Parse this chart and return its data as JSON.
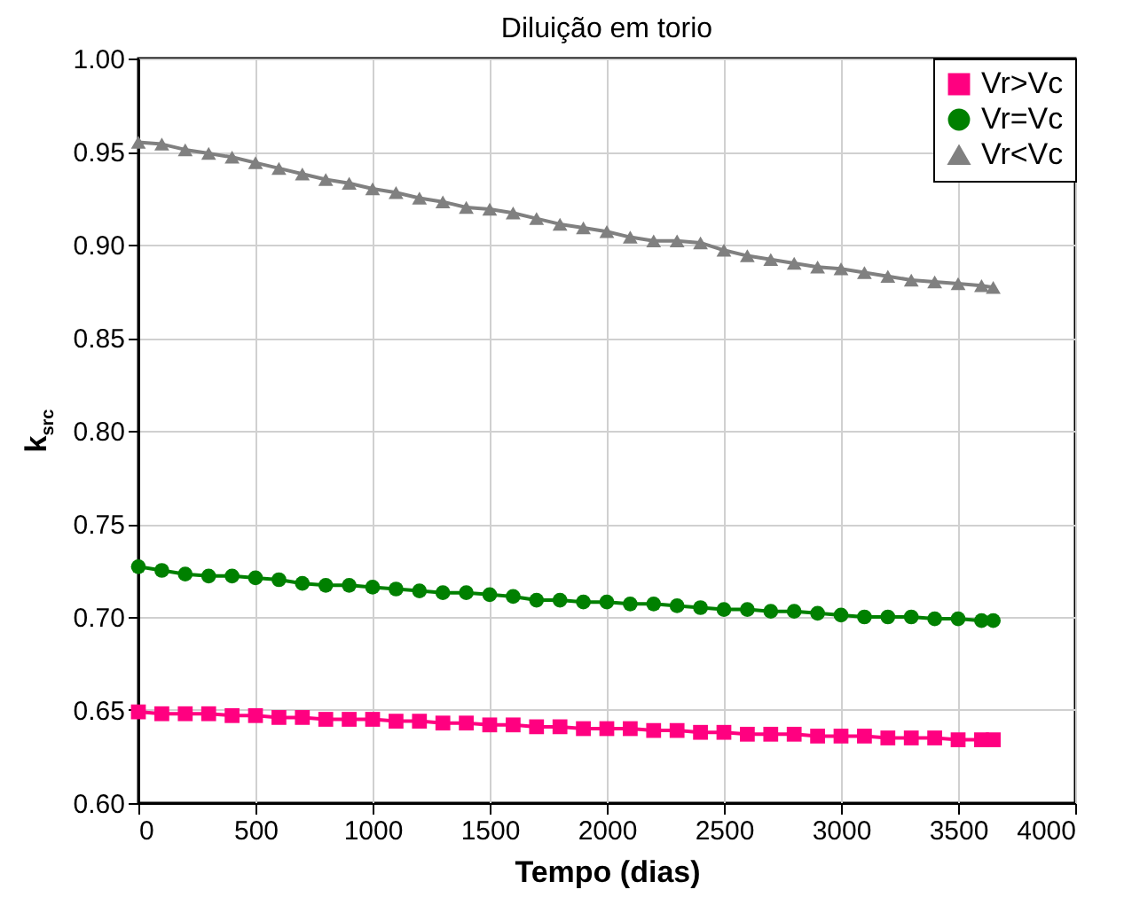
{
  "chart_data": {
    "type": "line",
    "title": "Diluição em torio",
    "xlabel": "Tempo (dias)",
    "ylabel": "k$_{src}$",
    "x": [
      0,
      100,
      200,
      300,
      400,
      500,
      600,
      700,
      800,
      900,
      1000,
      1100,
      1200,
      1300,
      1400,
      1500,
      1600,
      1700,
      1800,
      1900,
      2000,
      2100,
      2200,
      2300,
      2400,
      2500,
      2600,
      2700,
      2800,
      2900,
      3000,
      3100,
      3200,
      3300,
      3400,
      3500,
      3600,
      3650
    ],
    "series": [
      {
        "name": "Vr>Vc",
        "color": "#ff0080",
        "marker": "square",
        "values": [
          0.649,
          0.648,
          0.648,
          0.648,
          0.647,
          0.647,
          0.646,
          0.646,
          0.645,
          0.645,
          0.645,
          0.644,
          0.644,
          0.643,
          0.643,
          0.642,
          0.642,
          0.641,
          0.641,
          0.64,
          0.64,
          0.64,
          0.639,
          0.639,
          0.638,
          0.638,
          0.637,
          0.637,
          0.637,
          0.636,
          0.636,
          0.636,
          0.635,
          0.635,
          0.635,
          0.634,
          0.634,
          0.634
        ]
      },
      {
        "name": "Vr=Vc",
        "color": "#008000",
        "marker": "circle",
        "values": [
          0.727,
          0.725,
          0.723,
          0.722,
          0.722,
          0.721,
          0.72,
          0.718,
          0.717,
          0.717,
          0.716,
          0.715,
          0.714,
          0.713,
          0.713,
          0.712,
          0.711,
          0.709,
          0.709,
          0.708,
          0.708,
          0.707,
          0.707,
          0.706,
          0.705,
          0.704,
          0.704,
          0.703,
          0.703,
          0.702,
          0.701,
          0.7,
          0.7,
          0.7,
          0.699,
          0.699,
          0.698,
          0.698
        ]
      },
      {
        "name": "Vr<Vc",
        "color": "#808080",
        "marker": "triangle",
        "values": [
          0.955,
          0.954,
          0.951,
          0.949,
          0.947,
          0.944,
          0.941,
          0.938,
          0.935,
          0.933,
          0.93,
          0.928,
          0.925,
          0.923,
          0.92,
          0.919,
          0.917,
          0.914,
          0.911,
          0.909,
          0.907,
          0.904,
          0.902,
          0.902,
          0.901,
          0.897,
          0.894,
          0.892,
          0.89,
          0.888,
          0.887,
          0.885,
          0.883,
          0.881,
          0.88,
          0.879,
          0.878,
          0.877
        ]
      }
    ],
    "xlim": [
      0,
      4000
    ],
    "xticks": [
      0,
      500,
      1000,
      1500,
      2000,
      2500,
      3000,
      3500,
      4000
    ],
    "ylim": [
      0.6,
      1.0
    ],
    "yticks": [
      {
        "value": 0.6,
        "label": "0.60"
      },
      {
        "value": 0.65,
        "label": "0.65"
      },
      {
        "value": 0.7,
        "label": "0.70"
      },
      {
        "value": 0.75,
        "label": "0.75"
      },
      {
        "value": 0.8,
        "label": "0.80"
      },
      {
        "value": 0.85,
        "label": "0.85"
      },
      {
        "value": 0.9,
        "label": "0.90"
      },
      {
        "value": 0.95,
        "label": "0.95"
      },
      {
        "value": 1.0,
        "label": "1.00"
      }
    ],
    "grid": true,
    "legend": "top right",
    "line_style": "solid"
  }
}
